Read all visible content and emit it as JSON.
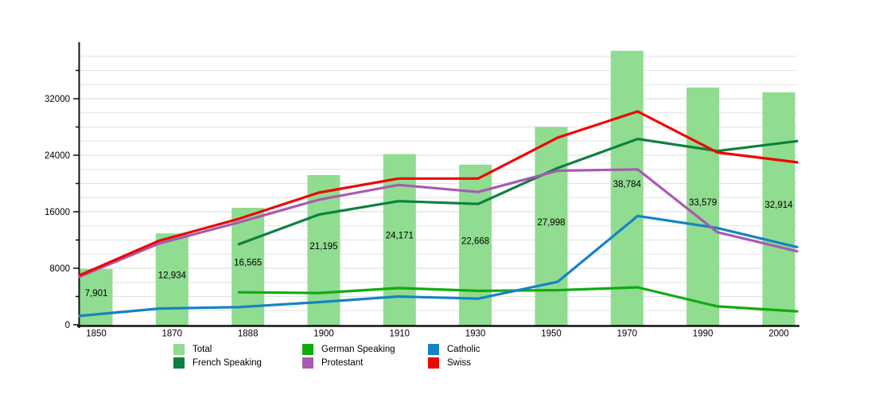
{
  "chart_data": {
    "type": "bar+line",
    "title": "",
    "categories": [
      "1850",
      "1870",
      "1888",
      "1900",
      "1910",
      "1930",
      "1950",
      "1970",
      "1990",
      "2000"
    ],
    "bar_series": {
      "name": "Total",
      "color": "#90dc90",
      "values": [
        7901,
        12934,
        16565,
        21195,
        24171,
        22668,
        27998,
        38784,
        33579,
        32914
      ],
      "value_labels": [
        "7,901",
        "12,934",
        "16,565",
        "21,195",
        "24,171",
        "22,668",
        "27,998",
        "38,784",
        "33,579",
        "32,914"
      ]
    },
    "line_series": [
      {
        "name": "German Speaking",
        "color": "#10ab10",
        "values": [
          null,
          null,
          4600,
          4500,
          5200,
          4800,
          4900,
          5300,
          2600,
          1900
        ]
      },
      {
        "name": "Catholic",
        "color": "#1583c5",
        "values": [
          1250,
          2300,
          2500,
          3200,
          4000,
          3700,
          6100,
          15400,
          13700,
          11000
        ]
      },
      {
        "name": "French Speaking",
        "color": "#0c8040",
        "values": [
          null,
          null,
          11400,
          15600,
          17500,
          17100,
          22200,
          26300,
          24600,
          26000
        ]
      },
      {
        "name": "Protestant",
        "color": "#a85ab2",
        "values": [
          6800,
          11500,
          14500,
          17700,
          19800,
          18800,
          21800,
          22000,
          13100,
          10400
        ]
      },
      {
        "name": "Swiss",
        "color": "#ee0505",
        "values": [
          7000,
          11900,
          15000,
          18700,
          20700,
          20700,
          26500,
          30200,
          24400,
          23000
        ]
      }
    ],
    "y_axis": {
      "min": 0,
      "max": 40000,
      "grid_step": 2000,
      "tick_step": 4000,
      "label_step": 8000,
      "tick_labels": [
        "0",
        "8000",
        "16000",
        "24000",
        "32000"
      ]
    },
    "x_axis": {
      "tick_labels": [
        "1850",
        "1870",
        "1888",
        "1900",
        "1910",
        "1930",
        "1950",
        "1970",
        "1990",
        "2000"
      ]
    },
    "legend": {
      "position": "bottom",
      "items": [
        {
          "label": "Total",
          "color": "#90dc90",
          "row": 0,
          "col": 0
        },
        {
          "label": "German Speaking",
          "color": "#10ab10",
          "row": 0,
          "col": 1
        },
        {
          "label": "Catholic",
          "color": "#1583c5",
          "row": 0,
          "col": 2
        },
        {
          "label": "French Speaking",
          "color": "#0c8040",
          "row": 1,
          "col": 0
        },
        {
          "label": "Protestant",
          "color": "#a85ab2",
          "row": 1,
          "col": 1
        },
        {
          "label": "Swiss",
          "color": "#ee0505",
          "row": 1,
          "col": 2
        }
      ]
    },
    "grid": true,
    "colors": {
      "axis": "#111111",
      "gridline": "#e2e2e2",
      "text": "#000000",
      "background": "#ffffff"
    }
  }
}
